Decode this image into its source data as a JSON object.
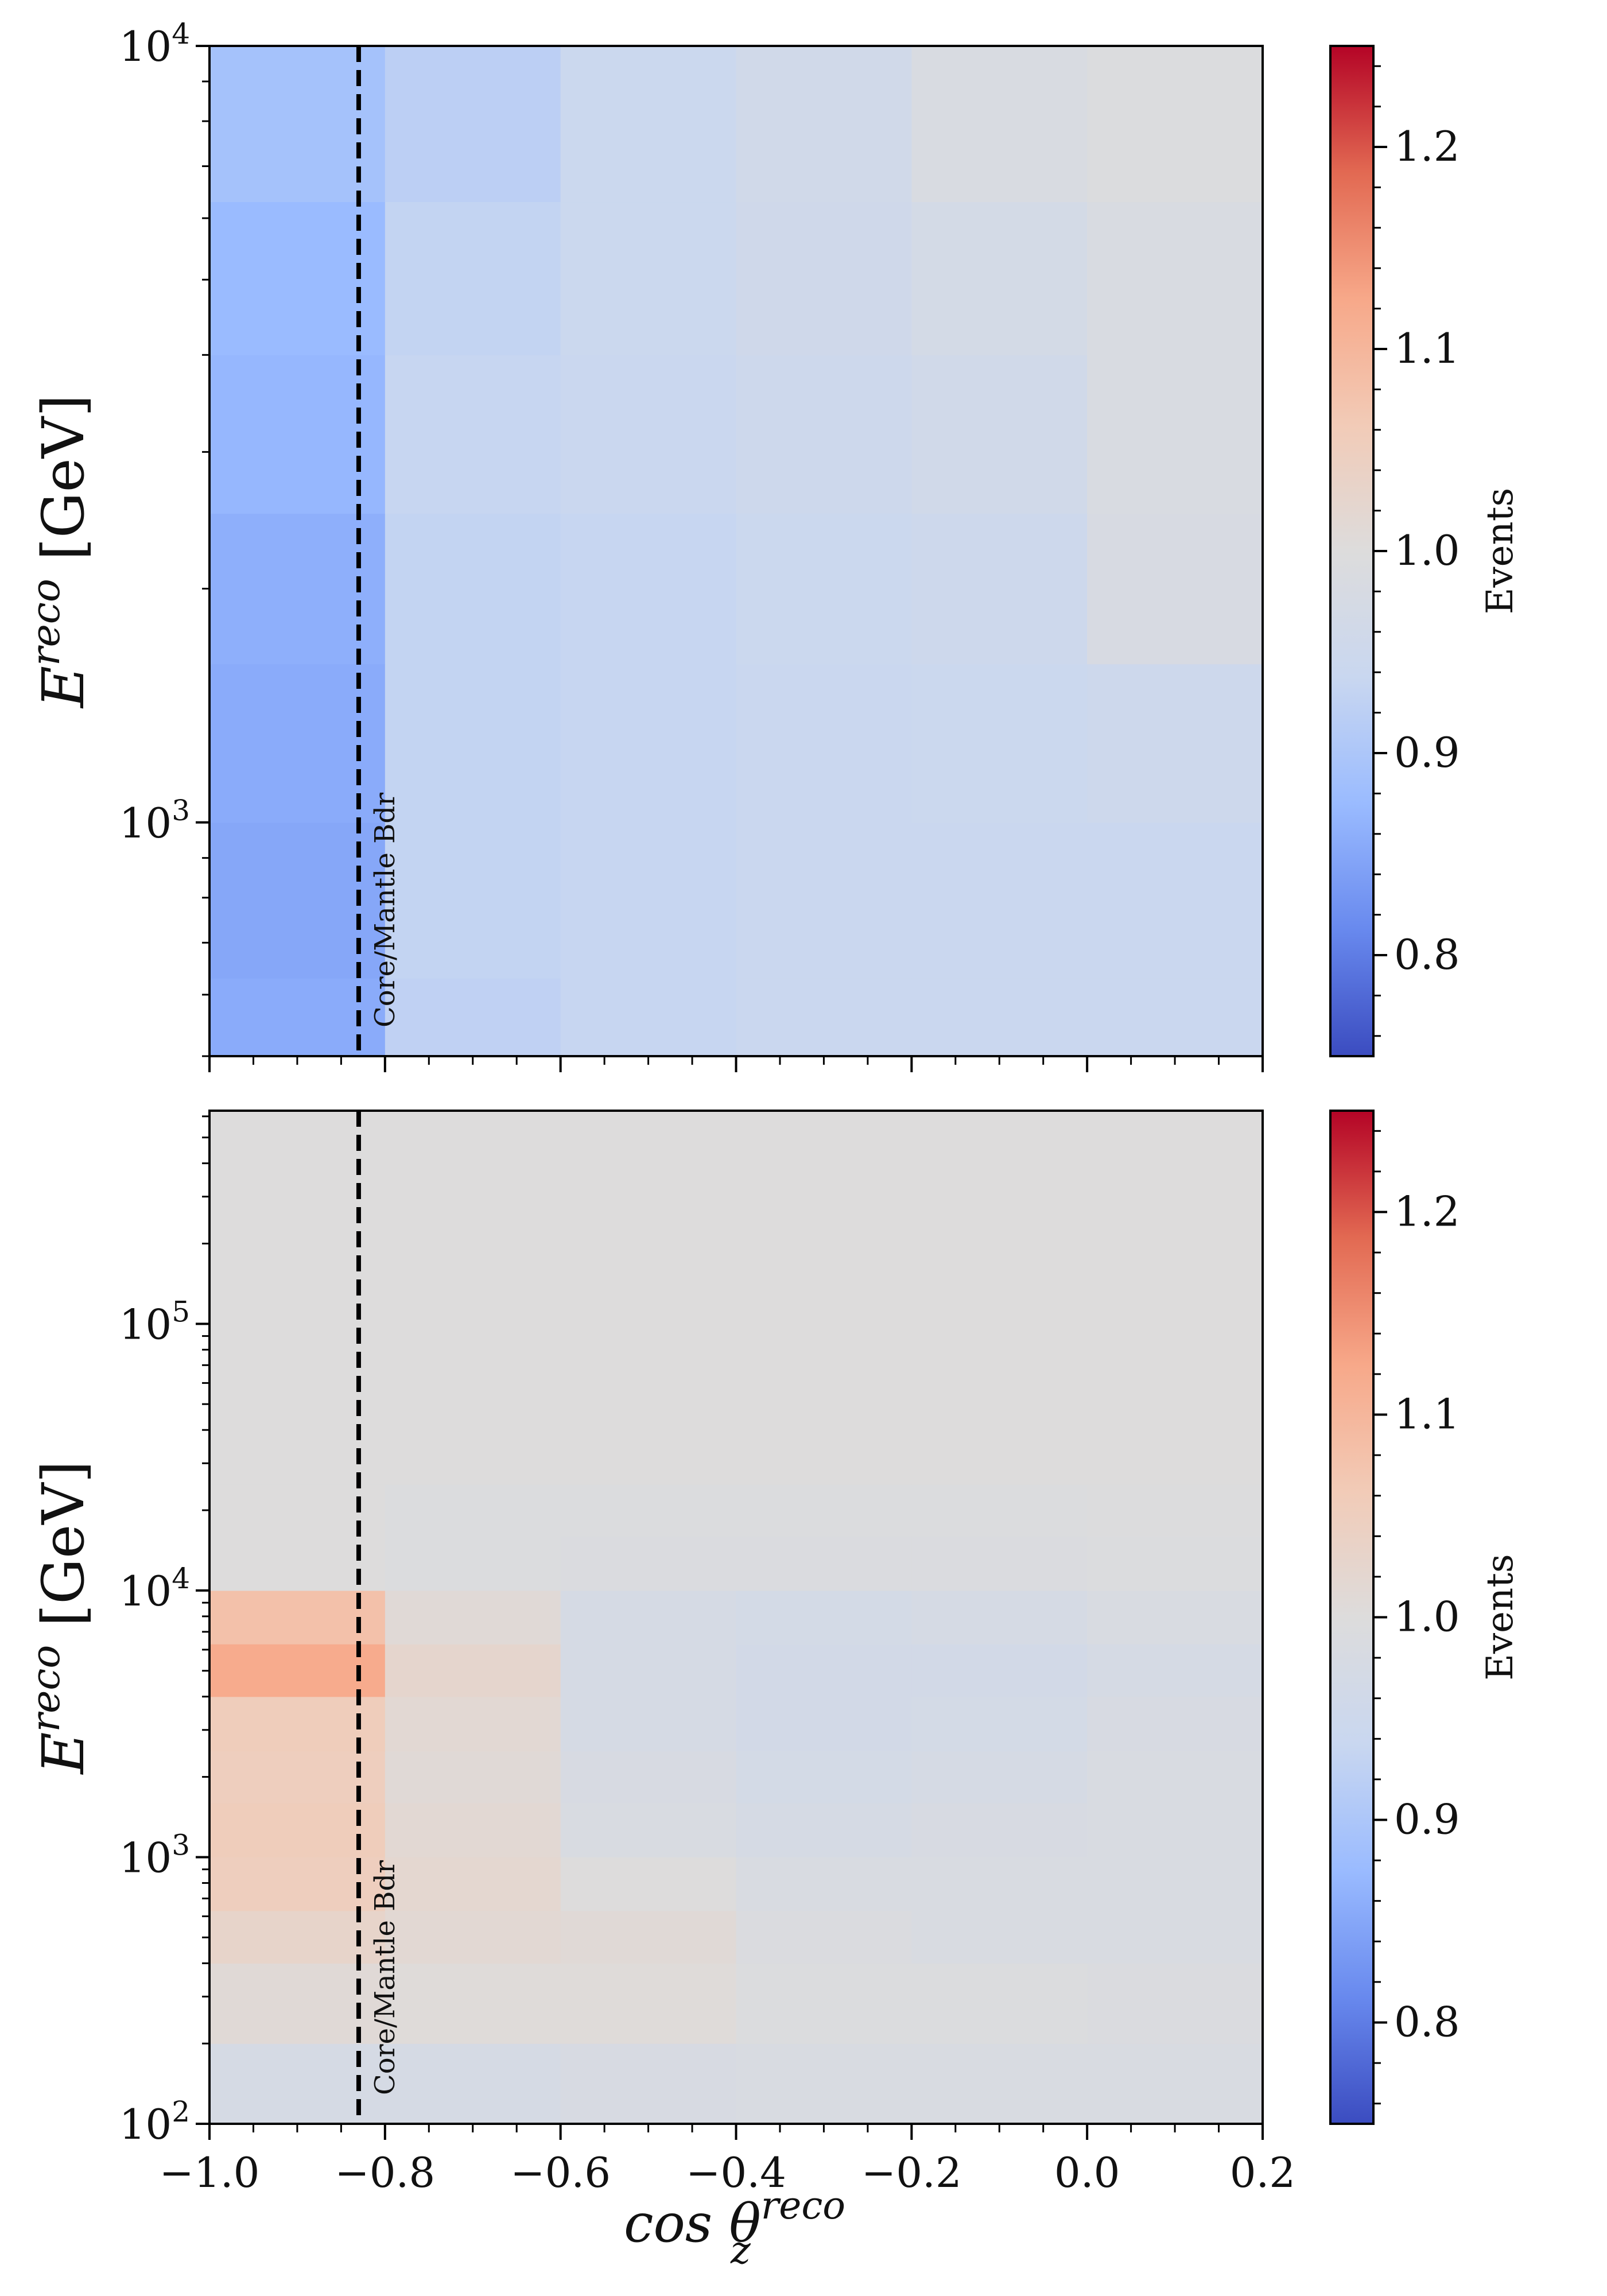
{
  "chart_data": [
    {
      "type": "heatmap",
      "panel": "top",
      "x_edges": [
        -1.0,
        -0.8,
        -0.6,
        -0.4,
        -0.2,
        0.0,
        0.2
      ],
      "y_edges": [
        500,
        630,
        1000,
        1600,
        2500,
        4000,
        6300,
        10000
      ],
      "xlim": [
        -1.0,
        0.2
      ],
      "ylim": [
        500,
        10000
      ],
      "y_scale": "log",
      "ylabel_base": "E",
      "ylabel_sup": "reco",
      "ylabel_unit": "[GeV]",
      "y_tick_values": [
        1000,
        10000
      ],
      "y_tick_exponents": [
        "3",
        "4"
      ],
      "x_ticks": [
        -1.0,
        -0.8,
        -0.6,
        -0.4,
        -0.2,
        0.0,
        0.2
      ],
      "x_ticklabels": [],
      "values": [
        [
          0.855,
          0.925,
          0.935,
          0.94,
          0.94,
          0.94
        ],
        [
          0.85,
          0.93,
          0.935,
          0.94,
          0.94,
          0.94
        ],
        [
          0.855,
          0.93,
          0.935,
          0.94,
          0.945,
          0.95
        ],
        [
          0.86,
          0.93,
          0.935,
          0.945,
          0.95,
          0.98
        ],
        [
          0.87,
          0.935,
          0.94,
          0.95,
          0.96,
          0.985
        ],
        [
          0.875,
          0.93,
          0.945,
          0.955,
          0.97,
          0.985
        ],
        [
          0.89,
          0.92,
          0.945,
          0.96,
          0.985,
          0.995
        ]
      ],
      "vline_x": -0.83,
      "vline_label": "Core/Mantle Bdr",
      "colorbar": {
        "label": "Events",
        "min": 0.75,
        "max": 1.25,
        "ticks": [
          0.8,
          0.9,
          1.0,
          1.1,
          1.2
        ],
        "ticklabels": [
          "0.8",
          "0.9",
          "1.0",
          "1.1",
          "1.2"
        ]
      }
    },
    {
      "type": "heatmap",
      "panel": "bottom",
      "x_edges": [
        -1.0,
        -0.8,
        -0.6,
        -0.4,
        -0.2,
        0.0,
        0.2
      ],
      "y_edges": [
        100,
        200,
        400,
        630,
        1000,
        1600,
        2500,
        4000,
        6300,
        10000,
        16000,
        25000,
        40000,
        63000,
        630000
      ],
      "xlim": [
        -1.0,
        0.2
      ],
      "ylim": [
        100,
        630000
      ],
      "y_scale": "log",
      "xlabel_base": "cos θ",
      "xlabel_sub": "z",
      "xlabel_sup": "reco",
      "ylabel_base": "E",
      "ylabel_sup": "reco",
      "ylabel_unit": "[GeV]",
      "y_tick_values": [
        100,
        1000,
        10000,
        100000
      ],
      "y_tick_exponents": [
        "2",
        "3",
        "4",
        "5"
      ],
      "x_ticks": [
        -1.0,
        -0.8,
        -0.6,
        -0.4,
        -0.2,
        0.0,
        0.2
      ],
      "x_ticklabels": [
        "−1.0",
        "−0.8",
        "−0.6",
        "−0.4",
        "−0.2",
        "0.0",
        "0.2"
      ],
      "values": [
        [
          0.975,
          0.975,
          0.98,
          0.985,
          0.985,
          0.985
        ],
        [
          1.01,
          1.005,
          1.005,
          0.995,
          0.995,
          0.99
        ],
        [
          1.03,
          1.015,
          1.01,
          0.99,
          0.985,
          0.985
        ],
        [
          1.05,
          1.02,
          1.0,
          0.985,
          0.985,
          0.985
        ],
        [
          1.055,
          1.015,
          0.985,
          0.975,
          0.98,
          0.985
        ],
        [
          1.05,
          1.01,
          0.98,
          0.97,
          0.975,
          0.985
        ],
        [
          1.055,
          1.015,
          0.975,
          0.965,
          0.97,
          0.98
        ],
        [
          1.12,
          1.025,
          0.975,
          0.965,
          0.965,
          0.975
        ],
        [
          1.08,
          1.01,
          0.975,
          0.97,
          0.975,
          0.985
        ],
        [
          1.0,
          0.995,
          0.99,
          0.99,
          0.99,
          0.995
        ],
        [
          1.0,
          0.995,
          0.995,
          0.995,
          0.995,
          0.998
        ],
        [
          1.0,
          1.0,
          1.0,
          1.0,
          1.0,
          1.0
        ],
        [
          1.0,
          1.0,
          1.0,
          1.0,
          1.0,
          1.0
        ],
        [
          1.0,
          1.0,
          1.0,
          1.0,
          1.0,
          1.0
        ]
      ],
      "vline_x": -0.83,
      "vline_label": "Core/Mantle Bdr",
      "colorbar": {
        "label": "Events",
        "min": 0.75,
        "max": 1.25,
        "ticks": [
          0.8,
          0.9,
          1.0,
          1.1,
          1.2
        ],
        "ticklabels": [
          "0.8",
          "0.9",
          "1.0",
          "1.1",
          "1.2"
        ]
      }
    }
  ],
  "colormap": {
    "name": "coolwarm",
    "stops": [
      "#3b4cc0",
      "#6889ee",
      "#9abbff",
      "#c9d7f0",
      "#dddcdc",
      "#f2cbb7",
      "#f7a889",
      "#e26952",
      "#b40426"
    ]
  }
}
